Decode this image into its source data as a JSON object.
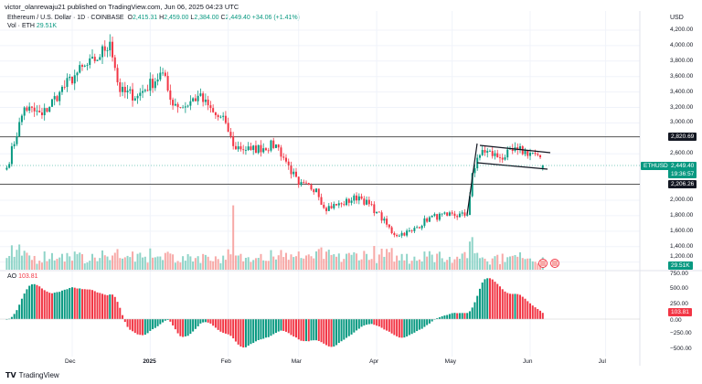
{
  "header": {
    "publisher": "victor_olanrewaju21 published on TradingView.com, Jun 06, 2025 04:23 UTC",
    "symbol": "Ethereum / U.S. Dollar · 1D · COINBASE",
    "open_label": "O",
    "open": "2,415.31",
    "high_label": "H",
    "high": "2,459.00",
    "low_label": "L",
    "low": "2,384.00",
    "close_label": "C",
    "close": "2,449.40",
    "change": "+34.06 (+1.41%)",
    "vol_label": "Vol · ETH",
    "vol": "29.51K"
  },
  "currency": "USD",
  "price_ticks": [
    "4,200.00",
    "4,000.00",
    "3,800.00",
    "3,600.00",
    "3,400.00",
    "3,200.00",
    "3,000.00",
    "2,600.00",
    "2,000.00",
    "1,800.00",
    "1,600.00",
    "1,400.00",
    "1,200.00"
  ],
  "price_tick_values": [
    4200,
    4000,
    3800,
    3600,
    3400,
    3200,
    3000,
    2600,
    2000,
    1800,
    1600,
    1400,
    1200
  ],
  "levels": [
    {
      "label": "2,820.69",
      "value": 2820.69
    },
    {
      "label": "2,206.26",
      "value": 2206.26
    }
  ],
  "last_price": {
    "symbol": "ETHUSD",
    "price": "2,449.40",
    "value": 2449.4,
    "countdown": "19:36:57"
  },
  "volume_tag": "29.51K",
  "ao": {
    "label": "AO",
    "value": "103.81",
    "ticks": [
      "750.00",
      "500.00",
      "250.00",
      "0.00",
      "−250.00",
      "−500.00"
    ],
    "tick_values": [
      750,
      500,
      250,
      0,
      -250,
      -500
    ]
  },
  "time_labels": [
    {
      "label": "Dec",
      "date": "2024-12-01"
    },
    {
      "label": "2025",
      "date": "2025-01-01"
    },
    {
      "label": "Feb",
      "date": "2025-02-01"
    },
    {
      "label": "Mar",
      "date": "2025-03-01"
    },
    {
      "label": "Apr",
      "date": "2025-04-01"
    },
    {
      "label": "May",
      "date": "2025-05-01"
    },
    {
      "label": "Jun",
      "date": "2025-06-01"
    },
    {
      "label": "Jul",
      "date": "2025-07-01"
    }
  ],
  "footer": "TradingView",
  "colors": {
    "up": "#089981",
    "down": "#f23645",
    "up_vol": "#8fd4c8",
    "down_vol": "#f7a9a7",
    "level": "#131722"
  },
  "chart_data": {
    "type": "candlestick",
    "start_date": "2024-11-05",
    "anchor_closes": [
      [
        "2024-11-05",
        2420
      ],
      [
        "2024-11-12",
        3200
      ],
      [
        "2024-11-19",
        3100
      ],
      [
        "2024-11-26",
        3400
      ],
      [
        "2024-12-03",
        3650
      ],
      [
        "2024-12-10",
        3800
      ],
      [
        "2024-12-16",
        4050
      ],
      [
        "2024-12-20",
        3400
      ],
      [
        "2024-12-27",
        3350
      ],
      [
        "2025-01-06",
        3650
      ],
      [
        "2025-01-09",
        3300
      ],
      [
        "2025-01-14",
        3200
      ],
      [
        "2025-01-20",
        3350
      ],
      [
        "2025-01-27",
        3100
      ],
      [
        "2025-01-31",
        3000
      ],
      [
        "2025-02-03",
        2700
      ],
      [
        "2025-02-10",
        2650
      ],
      [
        "2025-02-20",
        2720
      ],
      [
        "2025-02-24",
        2500
      ],
      [
        "2025-03-01",
        2200
      ],
      [
        "2025-03-08",
        2150
      ],
      [
        "2025-03-11",
        1900
      ],
      [
        "2025-03-18",
        1950
      ],
      [
        "2025-03-25",
        2050
      ],
      [
        "2025-04-01",
        1850
      ],
      [
        "2025-04-08",
        1550
      ],
      [
        "2025-04-15",
        1600
      ],
      [
        "2025-04-22",
        1780
      ],
      [
        "2025-04-29",
        1800
      ],
      [
        "2025-05-07",
        1810
      ],
      [
        "2025-05-09",
        2350
      ],
      [
        "2025-05-13",
        2650
      ],
      [
        "2025-05-20",
        2550
      ],
      [
        "2025-05-27",
        2650
      ],
      [
        "2025-06-03",
        2600
      ],
      [
        "2025-06-06",
        2449.4
      ]
    ],
    "pattern": "bull flag channel",
    "ylim": [
      1150,
      4300
    ]
  }
}
